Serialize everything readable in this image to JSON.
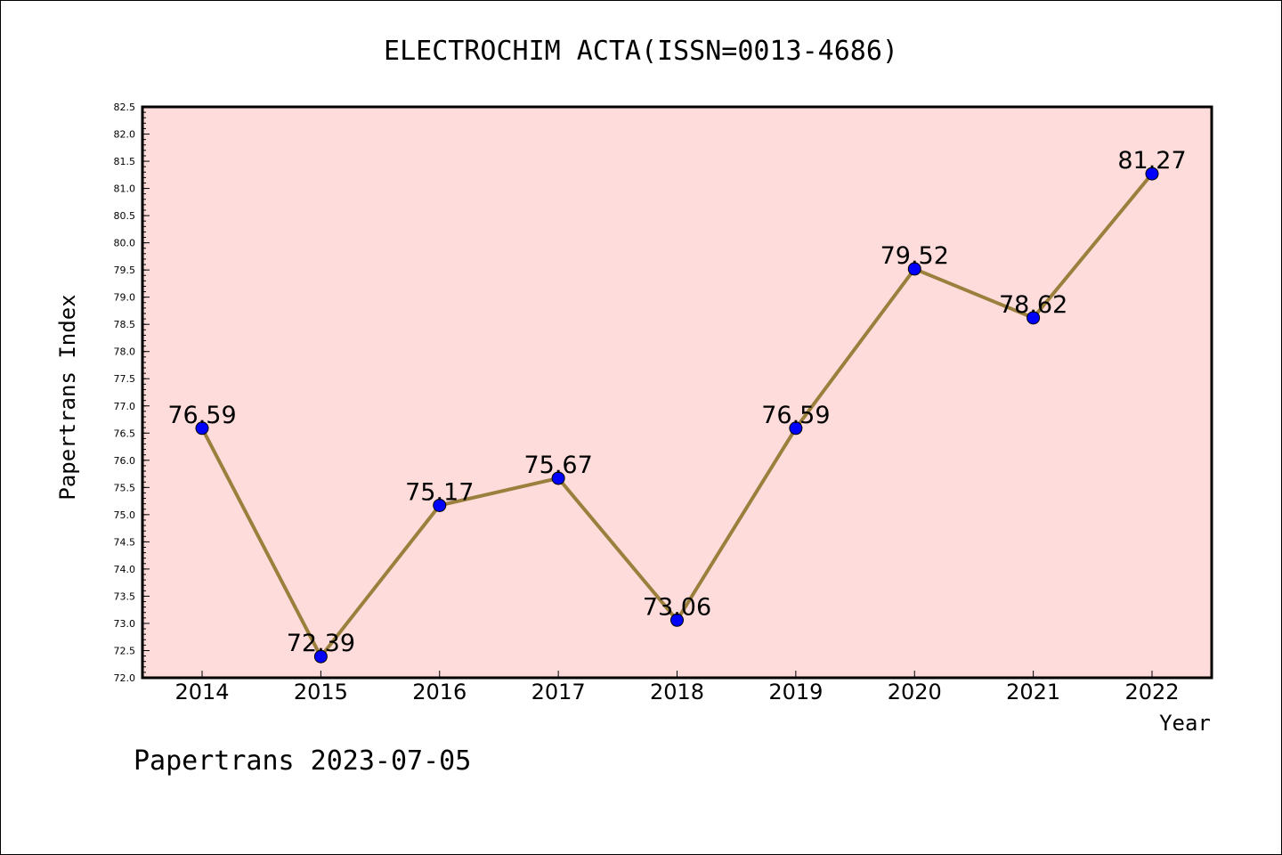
{
  "chart_data": {
    "type": "line",
    "title": "ELECTROCHIM ACTA(ISSN=0013-4686)",
    "xlabel": "Year",
    "ylabel": "Papertrans Index",
    "categories": [
      "2014",
      "2015",
      "2016",
      "2017",
      "2018",
      "2019",
      "2020",
      "2021",
      "2022"
    ],
    "values": [
      76.59,
      72.39,
      75.17,
      75.67,
      73.06,
      76.59,
      79.52,
      78.62,
      81.27
    ],
    "data_labels": [
      "76.59",
      "72.39",
      "75.17",
      "75.67",
      "73.06",
      "76.59",
      "79.52",
      "78.62",
      "81.27"
    ],
    "ylim": [
      72.0,
      82.5
    ],
    "yticks": [
      "72.0",
      "72.5",
      "73.0",
      "73.5",
      "74.0",
      "74.5",
      "75.0",
      "75.5",
      "76.0",
      "76.5",
      "77.0",
      "77.5",
      "78.0",
      "78.5",
      "79.0",
      "79.5",
      "80.0",
      "80.5",
      "81.0",
      "81.5",
      "82.0",
      "82.5"
    ],
    "grid": false,
    "colors": {
      "plot_background": "#ffdcdc",
      "line": "#9b7f3c",
      "marker": "#0000ff"
    }
  },
  "footer": "Papertrans 2023-07-05"
}
